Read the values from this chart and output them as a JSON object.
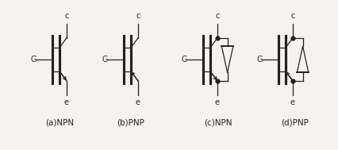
{
  "bg_color": "#f5f3f0",
  "line_color": "#222222",
  "labels": {
    "a": "(a)NPN",
    "b": "(b)PNP",
    "c": "(c)NPN",
    "d": "(d)PNP"
  },
  "figsize": [
    4.27,
    1.89
  ],
  "dpi": 100
}
